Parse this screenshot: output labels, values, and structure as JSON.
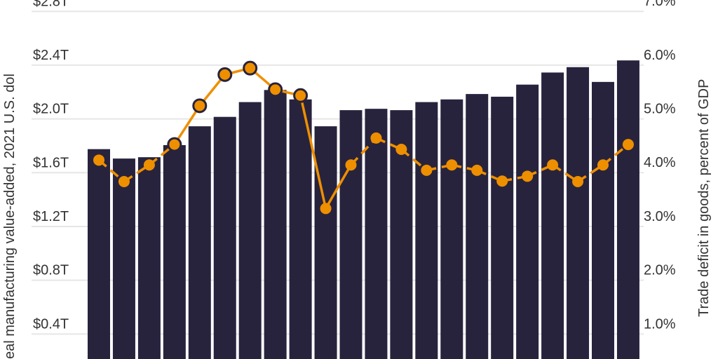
{
  "chart_data": {
    "type": "bar+line",
    "title": "",
    "ylabel_left": "eal manufacturing value-added, 2021 U.S. dol",
    "ylabel_right": "Trade deficit in goods, percent of GDP",
    "left_ticks": [
      "$0.4T",
      "$0.8T",
      "$1.2T",
      "$1.6T",
      "$2.0T",
      "$2.4T",
      "$2.8T"
    ],
    "left_tick_values": [
      0.4,
      0.8,
      1.2,
      1.6,
      2.0,
      2.4,
      2.8
    ],
    "right_ticks": [
      "1.0%",
      "2.0%",
      "3.0%",
      "4.0%",
      "5.0%",
      "6.0%",
      "7.0%"
    ],
    "right_tick_values": [
      1,
      2,
      3,
      4,
      5,
      6,
      7
    ],
    "ylim_left": [
      0,
      2.88
    ],
    "ylim_right": [
      0,
      7.2
    ],
    "grid": true,
    "series": [
      {
        "type": "bar",
        "axis": "left",
        "color": "#28233d",
        "values": [
          1.77,
          1.7,
          1.71,
          1.8,
          1.94,
          2.01,
          2.12,
          2.21,
          2.14,
          1.94,
          2.06,
          2.07,
          2.06,
          2.12,
          2.14,
          2.18,
          2.16,
          2.25,
          2.34,
          2.38,
          2.27,
          2.43
        ]
      },
      {
        "type": "line",
        "axis": "right",
        "color": "#ee8f00",
        "values": [
          4.22,
          3.82,
          4.13,
          4.51,
          5.23,
          5.81,
          5.93,
          5.53,
          5.42,
          3.32,
          4.13,
          4.63,
          4.42,
          4.03,
          4.13,
          4.03,
          3.83,
          3.92,
          4.13,
          3.82,
          4.13,
          4.51
        ],
        "highlighted_points": [
          3,
          4,
          5,
          6,
          7,
          8
        ],
        "solid_segments_range": [
          3,
          10
        ]
      }
    ]
  }
}
